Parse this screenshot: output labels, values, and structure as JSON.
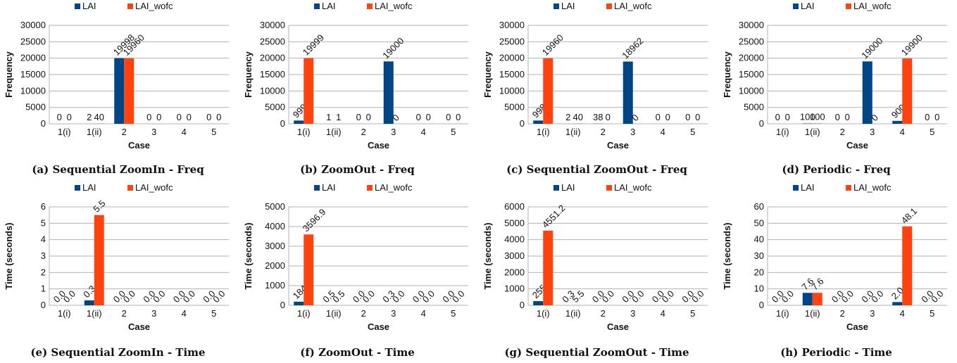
{
  "colors": {
    "LAI": "#004586",
    "LAI_wofc": "#ff420e",
    "grid": "#b3b3b3"
  },
  "chart_data": [
    {
      "type": "bar",
      "caption": "(a) Sequential ZoomIn - Freq",
      "categories": [
        "1(i)",
        "1(ii)",
        "2",
        "3",
        "4",
        "5"
      ],
      "series": [
        {
          "name": "LAI",
          "values": [
            0,
            2,
            19998,
            0,
            0,
            0
          ],
          "labels": [
            "0",
            "2",
            "19998",
            "0",
            "0",
            "0"
          ]
        },
        {
          "name": "LAI_wofc",
          "values": [
            0,
            40,
            19960,
            0,
            0,
            0
          ],
          "labels": [
            "0",
            "40",
            "19960",
            "0",
            "0",
            "0"
          ]
        }
      ],
      "xlabel": "Case",
      "ylabel": "Frequency",
      "ylim": [
        0,
        30000
      ],
      "yticks": [
        0,
        5000,
        10000,
        15000,
        20000,
        25000,
        30000
      ],
      "label_rotation": [
        0,
        0,
        1,
        0,
        0,
        0
      ],
      "legend": "top",
      "grid": true
    },
    {
      "type": "bar",
      "caption": "(b) ZoomOut - Freq",
      "categories": [
        "1(i)",
        "1(ii)",
        "2",
        "3",
        "4",
        "5"
      ],
      "series": [
        {
          "name": "LAI",
          "values": [
            999,
            1,
            0,
            19000,
            0,
            0
          ],
          "labels": [
            "999",
            "1",
            "0",
            "19000",
            "0",
            "0"
          ]
        },
        {
          "name": "LAI_wofc",
          "values": [
            19999,
            1,
            0,
            0,
            0,
            0
          ],
          "labels": [
            "19999",
            "1",
            "0",
            "0",
            "0",
            "0"
          ]
        }
      ],
      "xlabel": "Case",
      "ylabel": "Frequency",
      "ylim": [
        0,
        30000
      ],
      "yticks": [
        0,
        5000,
        10000,
        15000,
        20000,
        25000,
        30000
      ],
      "label_rotation": [
        1,
        0,
        0,
        1,
        0,
        0
      ],
      "legend": "top",
      "grid": true
    },
    {
      "type": "bar",
      "caption": "(c) Sequential ZoomOut - Freq",
      "categories": [
        "1(i)",
        "1(ii)",
        "2",
        "3",
        "4",
        "5"
      ],
      "series": [
        {
          "name": "LAI",
          "values": [
            998,
            2,
            38,
            18962,
            0,
            0
          ],
          "labels": [
            "998",
            "2",
            "38",
            "18962",
            "0",
            "0"
          ]
        },
        {
          "name": "LAI_wofc",
          "values": [
            19960,
            40,
            0,
            0,
            0,
            0
          ],
          "labels": [
            "19960",
            "40",
            "0",
            "0",
            "0",
            "0"
          ]
        }
      ],
      "xlabel": "Case",
      "ylabel": "Frequency",
      "ylim": [
        0,
        30000
      ],
      "yticks": [
        0,
        5000,
        10000,
        15000,
        20000,
        25000,
        30000
      ],
      "label_rotation": [
        1,
        0,
        0,
        1,
        0,
        0
      ],
      "legend": "top",
      "grid": true
    },
    {
      "type": "bar",
      "caption": "(d) Periodic - Freq",
      "categories": [
        "1(i)",
        "1(ii)",
        "2",
        "3",
        "4",
        "5"
      ],
      "series": [
        {
          "name": "LAI",
          "values": [
            0,
            100,
            0,
            19000,
            900,
            0
          ],
          "labels": [
            "0",
            "100",
            "0",
            "19000",
            "900",
            "0"
          ]
        },
        {
          "name": "LAI_wofc",
          "values": [
            0,
            100,
            0,
            0,
            19900,
            0
          ],
          "labels": [
            "0",
            "100",
            "0",
            "0",
            "19900",
            "0"
          ]
        }
      ],
      "xlabel": "Case",
      "ylabel": "Frequency",
      "ylim": [
        0,
        30000
      ],
      "yticks": [
        0,
        5000,
        10000,
        15000,
        20000,
        25000,
        30000
      ],
      "label_rotation": [
        0,
        0,
        0,
        1,
        1,
        0
      ],
      "legend": "top",
      "grid": true
    },
    {
      "type": "bar",
      "caption": "(e) Sequential ZoomIn - Time",
      "categories": [
        "1(i)",
        "1(ii)",
        "2",
        "3",
        "4",
        "5"
      ],
      "series": [
        {
          "name": "LAI",
          "values": [
            0.0,
            0.3,
            0.0,
            0.0,
            0.0,
            0.0
          ],
          "labels": [
            "0.0",
            "0.3",
            "0.0",
            "0.0",
            "0.0",
            "0.0"
          ]
        },
        {
          "name": "LAI_wofc",
          "values": [
            0.0,
            5.5,
            0.0,
            0.0,
            0.0,
            0.0
          ],
          "labels": [
            "0.0",
            "5.5",
            "0.0",
            "0.0",
            "0.0",
            "0.0"
          ]
        }
      ],
      "xlabel": "Case",
      "ylabel": "Time (seconds)",
      "ylim": [
        0,
        6
      ],
      "yticks": [
        0,
        1,
        2,
        3,
        4,
        5,
        6
      ],
      "label_rotation": [
        1,
        1,
        1,
        1,
        1,
        1
      ],
      "legend": "top",
      "grid": true
    },
    {
      "type": "bar",
      "caption": "(f) ZoomOut - Time",
      "categories": [
        "1(i)",
        "1(ii)",
        "2",
        "3",
        "4",
        "5"
      ],
      "series": [
        {
          "name": "LAI",
          "values": [
            184.5,
            0.5,
            0.0,
            0.3,
            0.0,
            0.0
          ],
          "labels": [
            "184.5",
            "0.5",
            "0.0",
            "0.3",
            "0.0",
            "0.0"
          ]
        },
        {
          "name": "LAI_wofc",
          "values": [
            3596.9,
            0.5,
            0.0,
            0.0,
            0.0,
            0.0
          ],
          "labels": [
            "3596.9",
            "0.5",
            "0.0",
            "0.0",
            "0.0",
            "0.0"
          ]
        }
      ],
      "xlabel": "Case",
      "ylabel": "Time (seconds)",
      "ylim": [
        0,
        5000
      ],
      "yticks": [
        0,
        1000,
        2000,
        3000,
        4000,
        5000
      ],
      "label_rotation": [
        1,
        1,
        1,
        1,
        1,
        1
      ],
      "legend": "top",
      "grid": true
    },
    {
      "type": "bar",
      "caption": "(g) Sequential ZoomOut - Time",
      "categories": [
        "1(i)",
        "1(ii)",
        "2",
        "3",
        "4",
        "5"
      ],
      "series": [
        {
          "name": "LAI",
          "values": [
            255.0,
            0.3,
            0.0,
            0.0,
            0.0,
            0.0
          ],
          "labels": [
            "255.0",
            "0.3",
            "0.0",
            "0.0",
            "0.0",
            "0.0"
          ]
        },
        {
          "name": "LAI_wofc",
          "values": [
            4551.2,
            5.5,
            0.0,
            0.0,
            0.0,
            0.0
          ],
          "labels": [
            "4551.2",
            "5.5",
            "0.0",
            "0.0",
            "0.0",
            "0.0"
          ]
        }
      ],
      "xlabel": "Case",
      "ylabel": "Time (seconds)",
      "ylim": [
        0,
        6000
      ],
      "yticks": [
        0,
        1000,
        2000,
        3000,
        4000,
        5000,
        6000
      ],
      "label_rotation": [
        1,
        1,
        1,
        1,
        1,
        1
      ],
      "legend": "top",
      "grid": true
    },
    {
      "type": "bar",
      "caption": "(h) Periodic - Time",
      "categories": [
        "1(i)",
        "1(ii)",
        "2",
        "3",
        "4",
        "5"
      ],
      "series": [
        {
          "name": "LAI",
          "values": [
            0.0,
            7.6,
            0.0,
            0.0,
            2.0,
            0.0
          ],
          "labels": [
            "0.0",
            "7.6",
            "0.0",
            "0.0",
            "2.0",
            "0.0"
          ]
        },
        {
          "name": "LAI_wofc",
          "values": [
            0.0,
            7.6,
            0.0,
            0.0,
            48.1,
            0.0
          ],
          "labels": [
            "0.0",
            "7.6",
            "0.0",
            "0.0",
            "48.1",
            "0.0"
          ]
        }
      ],
      "xlabel": "Case",
      "ylabel": "Time (seconds)",
      "ylim": [
        0,
        60
      ],
      "yticks": [
        0,
        10,
        20,
        30,
        40,
        50,
        60
      ],
      "label_rotation": [
        1,
        1,
        1,
        1,
        1,
        1
      ],
      "legend": "top",
      "grid": true
    }
  ]
}
